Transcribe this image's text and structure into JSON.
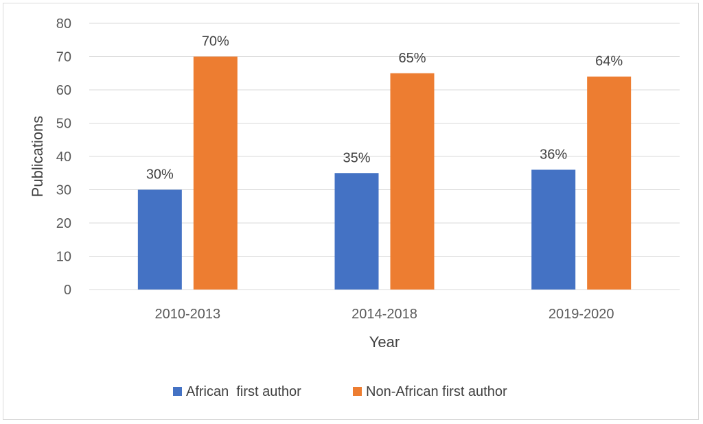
{
  "chart_data": {
    "type": "bar",
    "title": "",
    "xlabel": "Year",
    "ylabel": "Publications",
    "ylim": [
      0,
      80
    ],
    "yticks": [
      0,
      10,
      20,
      30,
      40,
      50,
      60,
      70,
      80
    ],
    "categories": [
      "2010-2013",
      "2014-2018",
      "2019-2020"
    ],
    "series": [
      {
        "name": "African  first author",
        "values": [
          30,
          35,
          36
        ],
        "labels": [
          "30%",
          "35%",
          "36%"
        ],
        "color": "#4472C4"
      },
      {
        "name": "Non-African first author",
        "values": [
          70,
          65,
          64
        ],
        "labels": [
          "70%",
          "65%",
          "64%"
        ],
        "color": "#ED7D31"
      }
    ],
    "grid": true,
    "legend_position": "bottom"
  }
}
